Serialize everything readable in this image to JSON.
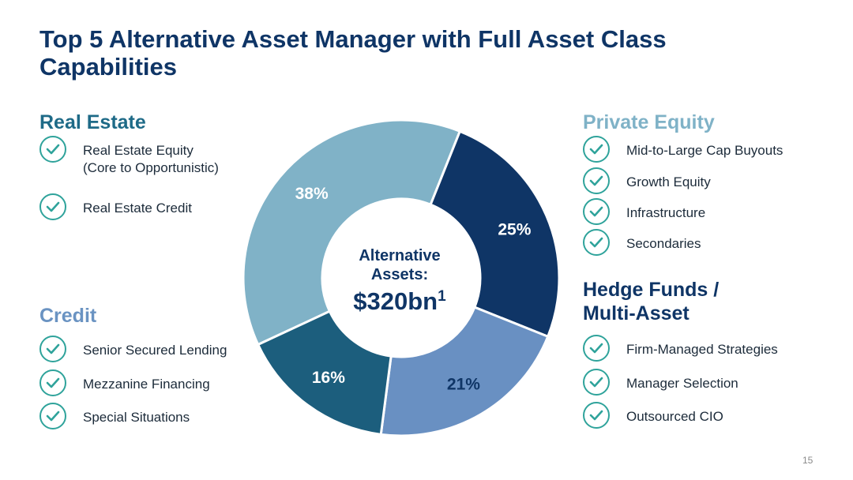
{
  "title": "Top 5 Alternative Asset Manager with Full Asset Class Capabilities",
  "real_estate": {
    "heading": "Real Estate",
    "items": [
      "Real Estate Equity\n(Core to Opportunistic)",
      "Real Estate Credit"
    ]
  },
  "credit": {
    "heading": "Credit",
    "items": [
      "Senior Secured Lending",
      "Mezzanine Financing",
      "Special Situations"
    ]
  },
  "private_equity": {
    "heading": "Private Equity",
    "items": [
      "Mid-to-Large Cap Buyouts",
      "Growth Equity",
      "Infrastructure",
      "Secondaries"
    ]
  },
  "hedge_funds": {
    "heading": "Hedge Funds / Multi-Asset",
    "items": [
      "Firm-Managed Strategies",
      "Manager Selection",
      "Outsourced CIO"
    ]
  },
  "page_number": "15",
  "colors": {
    "dark_navy": "#0f3566",
    "teal_blue": "#1c5e7d",
    "light_blue": "#80b2c7",
    "mid_blue": "#6990c2",
    "check_teal": "#2fa39b"
  },
  "chart_data": {
    "type": "pie",
    "donut": true,
    "center_text": [
      "Alternative",
      "Assets:",
      "$320bn"
    ],
    "center_superscript": "1",
    "slices": [
      {
        "label": "38%",
        "value": 38,
        "color": "#80b2c7",
        "text_color": "#ffffff"
      },
      {
        "label": "25%",
        "value": 25,
        "color": "#0f3566",
        "text_color": "#ffffff"
      },
      {
        "label": "21%",
        "value": 21,
        "color": "#6990c2",
        "text_color": "#0f3566"
      },
      {
        "label": "16%",
        "value": 16,
        "color": "#1c5e7d",
        "text_color": "#ffffff"
      }
    ]
  }
}
